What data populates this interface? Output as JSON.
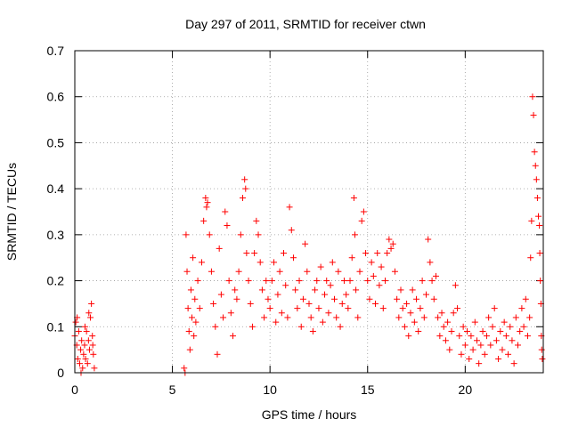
{
  "chart_data": {
    "type": "scatter",
    "title": "Day 297 of 2011, SRMTID for receiver ctwn",
    "xlabel": "GPS time / hours",
    "ylabel": "SRMTID / TECUs",
    "xlim": [
      0,
      24
    ],
    "ylim": [
      0,
      0.7
    ],
    "xticks": [
      0,
      5,
      10,
      15,
      20
    ],
    "xtick_labels": [
      "0",
      "5",
      "10",
      "15",
      "20"
    ],
    "yticks": [
      0,
      0.1,
      0.2,
      0.3,
      0.4,
      0.5,
      0.6,
      0.7
    ],
    "ytick_labels": [
      "0",
      "0.1",
      "0.2",
      "0.3",
      "0.4",
      "0.5",
      "0.6",
      "0.7"
    ],
    "grid": true,
    "marker": "+",
    "series": [
      {
        "name": "SRMTID",
        "color": "#ff0000",
        "points": [
          [
            0.0,
            0.08
          ],
          [
            0.05,
            0.11
          ],
          [
            0.1,
            0.06
          ],
          [
            0.15,
            0.03
          ],
          [
            0.2,
            0.09
          ],
          [
            0.25,
            0.02
          ],
          [
            0.3,
            0.05
          ],
          [
            0.35,
            0.07
          ],
          [
            0.4,
            0.01
          ],
          [
            0.45,
            0.04
          ],
          [
            0.5,
            0.06
          ],
          [
            0.55,
            0.03
          ],
          [
            0.6,
            0.09
          ],
          [
            0.65,
            0.02
          ],
          [
            0.7,
            0.07
          ],
          [
            0.75,
            0.05
          ],
          [
            0.8,
            0.12
          ],
          [
            0.85,
            0.15
          ],
          [
            0.9,
            0.08
          ],
          [
            0.95,
            0.04
          ],
          [
            1.0,
            0.01
          ],
          [
            0.12,
            0.12
          ],
          [
            0.32,
            0.0
          ],
          [
            0.52,
            0.1
          ],
          [
            0.72,
            0.13
          ],
          [
            0.92,
            0.06
          ],
          [
            5.6,
            0.01
          ],
          [
            5.65,
            0.0
          ],
          [
            5.7,
            0.3
          ],
          [
            5.75,
            0.22
          ],
          [
            5.8,
            0.14
          ],
          [
            5.85,
            0.09
          ],
          [
            5.9,
            0.05
          ],
          [
            5.95,
            0.18
          ],
          [
            6.0,
            0.12
          ],
          [
            6.05,
            0.25
          ],
          [
            6.1,
            0.08
          ],
          [
            6.15,
            0.16
          ],
          [
            6.2,
            0.11
          ],
          [
            6.3,
            0.2
          ],
          [
            6.4,
            0.14
          ],
          [
            6.5,
            0.24
          ],
          [
            6.6,
            0.33
          ],
          [
            6.7,
            0.38
          ],
          [
            6.75,
            0.36
          ],
          [
            6.8,
            0.37
          ],
          [
            6.9,
            0.3
          ],
          [
            7.0,
            0.22
          ],
          [
            7.1,
            0.15
          ],
          [
            7.2,
            0.1
          ],
          [
            7.3,
            0.04
          ],
          [
            7.4,
            0.27
          ],
          [
            7.5,
            0.17
          ],
          [
            7.6,
            0.12
          ],
          [
            7.7,
            0.35
          ],
          [
            7.8,
            0.32
          ],
          [
            7.9,
            0.2
          ],
          [
            8.0,
            0.13
          ],
          [
            8.1,
            0.08
          ],
          [
            8.2,
            0.18
          ],
          [
            8.3,
            0.16
          ],
          [
            8.4,
            0.22
          ],
          [
            8.5,
            0.3
          ],
          [
            8.6,
            0.38
          ],
          [
            8.7,
            0.42
          ],
          [
            8.75,
            0.4
          ],
          [
            8.8,
            0.26
          ],
          [
            8.9,
            0.2
          ],
          [
            9.0,
            0.15
          ],
          [
            9.1,
            0.1
          ],
          [
            9.2,
            0.26
          ],
          [
            9.3,
            0.33
          ],
          [
            9.4,
            0.3
          ],
          [
            9.5,
            0.24
          ],
          [
            9.6,
            0.18
          ],
          [
            9.7,
            0.12
          ],
          [
            9.8,
            0.2
          ],
          [
            9.9,
            0.16
          ],
          [
            10.0,
            0.14
          ],
          [
            10.1,
            0.2
          ],
          [
            10.2,
            0.24
          ],
          [
            10.3,
            0.11
          ],
          [
            10.4,
            0.17
          ],
          [
            10.5,
            0.22
          ],
          [
            10.6,
            0.13
          ],
          [
            10.7,
            0.26
          ],
          [
            10.8,
            0.19
          ],
          [
            10.9,
            0.12
          ],
          [
            11.0,
            0.36
          ],
          [
            11.1,
            0.31
          ],
          [
            11.2,
            0.25
          ],
          [
            11.3,
            0.18
          ],
          [
            11.4,
            0.14
          ],
          [
            11.5,
            0.2
          ],
          [
            11.6,
            0.1
          ],
          [
            11.7,
            0.16
          ],
          [
            11.8,
            0.28
          ],
          [
            11.9,
            0.22
          ],
          [
            12.0,
            0.15
          ],
          [
            12.1,
            0.12
          ],
          [
            12.2,
            0.09
          ],
          [
            12.3,
            0.18
          ],
          [
            12.4,
            0.2
          ],
          [
            12.5,
            0.14
          ],
          [
            12.6,
            0.23
          ],
          [
            12.7,
            0.11
          ],
          [
            12.8,
            0.17
          ],
          [
            12.9,
            0.2
          ],
          [
            13.0,
            0.13
          ],
          [
            13.1,
            0.19
          ],
          [
            13.2,
            0.24
          ],
          [
            13.3,
            0.16
          ],
          [
            13.4,
            0.12
          ],
          [
            13.5,
            0.22
          ],
          [
            13.6,
            0.1
          ],
          [
            13.7,
            0.15
          ],
          [
            13.8,
            0.2
          ],
          [
            13.9,
            0.17
          ],
          [
            14.0,
            0.14
          ],
          [
            14.1,
            0.2
          ],
          [
            14.2,
            0.25
          ],
          [
            14.3,
            0.38
          ],
          [
            14.35,
            0.3
          ],
          [
            14.4,
            0.18
          ],
          [
            14.5,
            0.12
          ],
          [
            14.6,
            0.22
          ],
          [
            14.7,
            0.33
          ],
          [
            14.8,
            0.35
          ],
          [
            14.9,
            0.26
          ],
          [
            15.0,
            0.2
          ],
          [
            15.1,
            0.16
          ],
          [
            15.2,
            0.24
          ],
          [
            15.3,
            0.21
          ],
          [
            15.4,
            0.15
          ],
          [
            15.5,
            0.26
          ],
          [
            15.6,
            0.19
          ],
          [
            15.7,
            0.23
          ],
          [
            15.8,
            0.14
          ],
          [
            15.9,
            0.2
          ],
          [
            16.0,
            0.26
          ],
          [
            16.1,
            0.29
          ],
          [
            16.2,
            0.27
          ],
          [
            16.3,
            0.28
          ],
          [
            16.4,
            0.22
          ],
          [
            16.5,
            0.16
          ],
          [
            16.6,
            0.12
          ],
          [
            16.7,
            0.18
          ],
          [
            16.8,
            0.14
          ],
          [
            16.9,
            0.1
          ],
          [
            17.0,
            0.15
          ],
          [
            17.1,
            0.08
          ],
          [
            17.2,
            0.13
          ],
          [
            17.3,
            0.18
          ],
          [
            17.4,
            0.11
          ],
          [
            17.5,
            0.16
          ],
          [
            17.6,
            0.09
          ],
          [
            17.7,
            0.14
          ],
          [
            17.8,
            0.2
          ],
          [
            17.9,
            0.12
          ],
          [
            18.0,
            0.17
          ],
          [
            18.1,
            0.29
          ],
          [
            18.2,
            0.24
          ],
          [
            18.3,
            0.2
          ],
          [
            18.4,
            0.16
          ],
          [
            18.5,
            0.21
          ],
          [
            18.6,
            0.12
          ],
          [
            18.7,
            0.08
          ],
          [
            18.8,
            0.13
          ],
          [
            18.9,
            0.1
          ],
          [
            19.0,
            0.07
          ],
          [
            19.1,
            0.11
          ],
          [
            19.2,
            0.05
          ],
          [
            19.3,
            0.09
          ],
          [
            19.4,
            0.13
          ],
          [
            19.5,
            0.19
          ],
          [
            19.6,
            0.14
          ],
          [
            19.7,
            0.08
          ],
          [
            19.8,
            0.04
          ],
          [
            19.9,
            0.1
          ],
          [
            20.0,
            0.06
          ],
          [
            20.1,
            0.09
          ],
          [
            20.2,
            0.03
          ],
          [
            20.3,
            0.08
          ],
          [
            20.4,
            0.05
          ],
          [
            20.5,
            0.11
          ],
          [
            20.6,
            0.07
          ],
          [
            20.7,
            0.02
          ],
          [
            20.8,
            0.06
          ],
          [
            20.9,
            0.09
          ],
          [
            21.0,
            0.04
          ],
          [
            21.1,
            0.08
          ],
          [
            21.2,
            0.12
          ],
          [
            21.3,
            0.06
          ],
          [
            21.4,
            0.1
          ],
          [
            21.5,
            0.14
          ],
          [
            21.6,
            0.07
          ],
          [
            21.7,
            0.03
          ],
          [
            21.8,
            0.09
          ],
          [
            21.9,
            0.05
          ],
          [
            22.0,
            0.11
          ],
          [
            22.1,
            0.08
          ],
          [
            22.2,
            0.04
          ],
          [
            22.3,
            0.1
          ],
          [
            22.4,
            0.07
          ],
          [
            22.5,
            0.02
          ],
          [
            22.6,
            0.12
          ],
          [
            22.7,
            0.06
          ],
          [
            22.8,
            0.09
          ],
          [
            22.9,
            0.14
          ],
          [
            23.0,
            0.1
          ],
          [
            23.1,
            0.16
          ],
          [
            23.2,
            0.08
          ],
          [
            23.3,
            0.12
          ],
          [
            23.35,
            0.25
          ],
          [
            23.4,
            0.33
          ],
          [
            23.45,
            0.6
          ],
          [
            23.5,
            0.56
          ],
          [
            23.55,
            0.48
          ],
          [
            23.6,
            0.45
          ],
          [
            23.65,
            0.42
          ],
          [
            23.7,
            0.38
          ],
          [
            23.75,
            0.34
          ],
          [
            23.8,
            0.32
          ],
          [
            23.82,
            0.26
          ],
          [
            23.85,
            0.2
          ],
          [
            23.88,
            0.15
          ],
          [
            23.9,
            0.08
          ],
          [
            23.92,
            0.05
          ],
          [
            23.95,
            0.03
          ]
        ]
      }
    ]
  }
}
